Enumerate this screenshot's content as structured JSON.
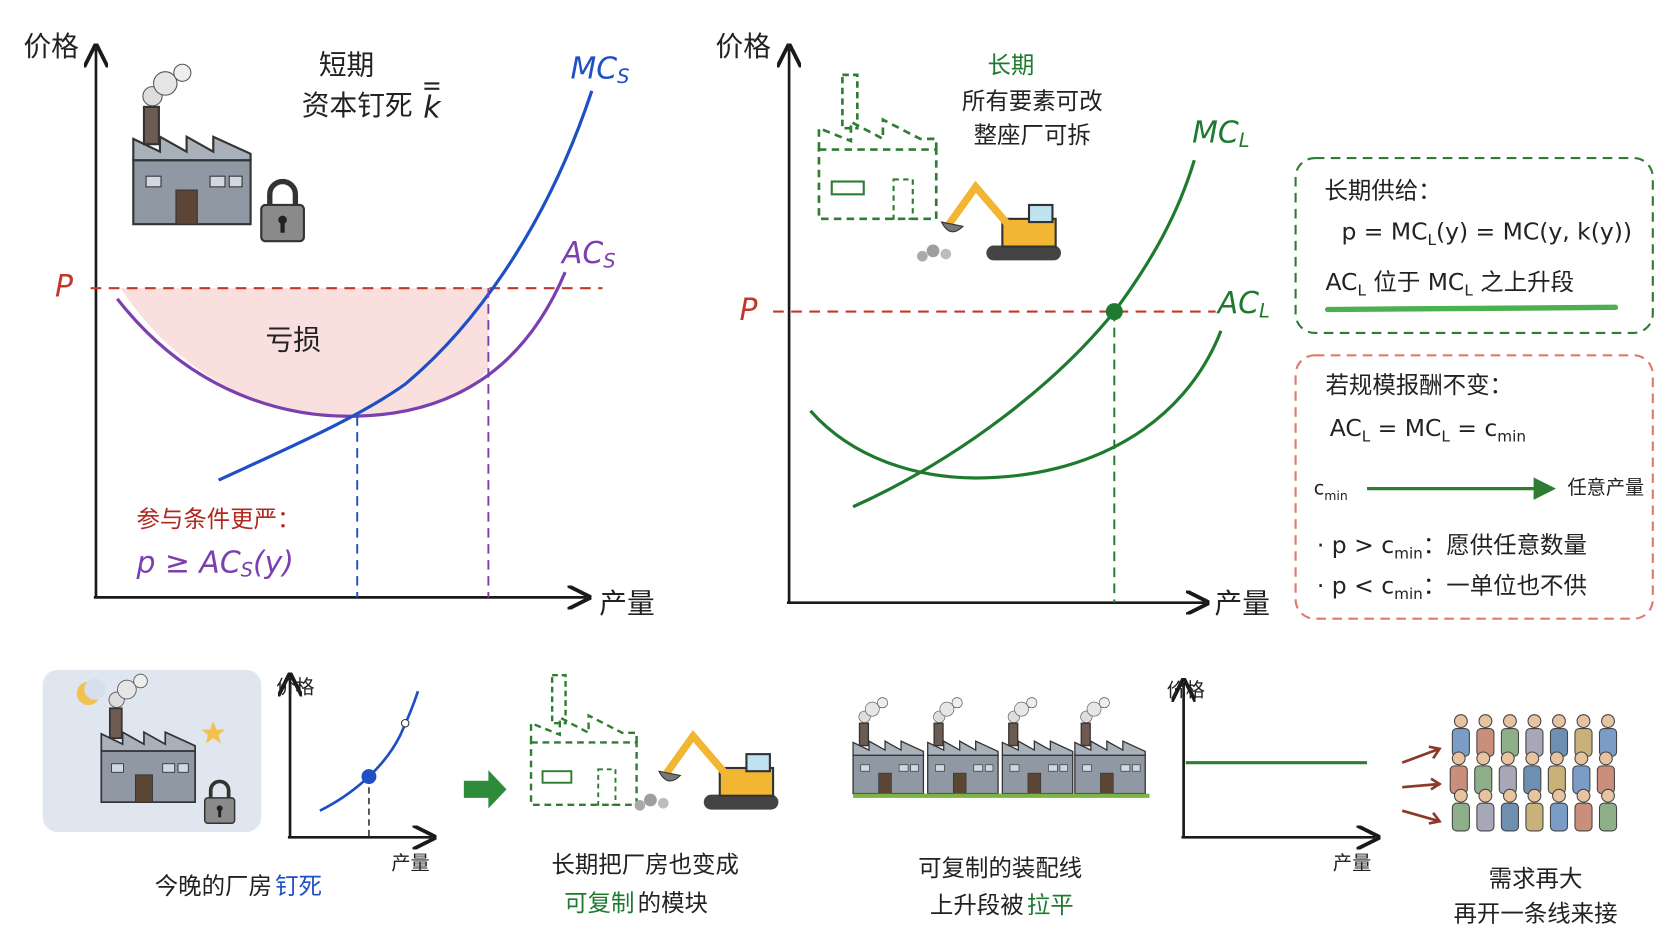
{
  "left_chart": {
    "y_axis": "价格",
    "x_axis": "产量",
    "title": "短期",
    "subtitle": "资本钉死",
    "capital": "k",
    "mc": [
      "MC",
      {
        "sub": "S"
      }
    ],
    "ac": [
      "AC",
      {
        "sub": "S"
      }
    ],
    "price": "P",
    "loss": "亏损",
    "condition_title": "参与条件更严：",
    "condition": [
      "p ≥ AC",
      {
        "sub": "S"
      },
      "(y)"
    ]
  },
  "right_chart": {
    "y_axis": "价格",
    "x_axis": "产量",
    "title": "长期",
    "line1": "所有要素可改",
    "line2": "整座厂可拆",
    "mc": [
      "MC",
      {
        "sub": "L"
      }
    ],
    "ac": [
      "AC",
      {
        "sub": "L"
      }
    ],
    "price": "P"
  },
  "supply_box": {
    "title": "长期供给：",
    "formula": [
      "p = MC",
      {
        "sub": "L"
      },
      "(y) = MC(y, k(y))"
    ],
    "note": [
      "AC",
      {
        "sub": "L"
      },
      " 位于 MC",
      {
        "sub": "L"
      },
      " 之上升段"
    ]
  },
  "crs_box": {
    "title": "若规模报酬不变：",
    "formula": [
      "AC",
      {
        "sub": "L"
      },
      " = MC",
      {
        "sub": "L"
      },
      " = c",
      {
        "sub": "min"
      }
    ],
    "axis_start": [
      "c",
      {
        "sub": "min"
      }
    ],
    "axis_end": "任意产量",
    "bullet_1": [
      "· p > c",
      {
        "sub": "min"
      },
      "：愿供任意数量"
    ],
    "bullet_2": [
      "· p < c",
      {
        "sub": "min"
      },
      "：一单位也不供"
    ]
  },
  "bottom": {
    "mini_chart_1": {
      "y_axis": "价格",
      "x_axis": "产量"
    },
    "caption_1": {
      "text": "今晚的厂房",
      "highlight": "钉死"
    },
    "caption_2": {
      "line1": "长期把厂房也变成",
      "highlight": "可复制",
      "rest": "的模块"
    },
    "caption_3": {
      "line1": "可复制的装配线",
      "lead": "上升段被",
      "highlight": "拉平"
    },
    "mini_chart_2": {
      "y_axis": "价格",
      "x_axis": "产量"
    },
    "caption_4": {
      "line1": "需求再大",
      "line2": "再开一条线来接"
    }
  }
}
